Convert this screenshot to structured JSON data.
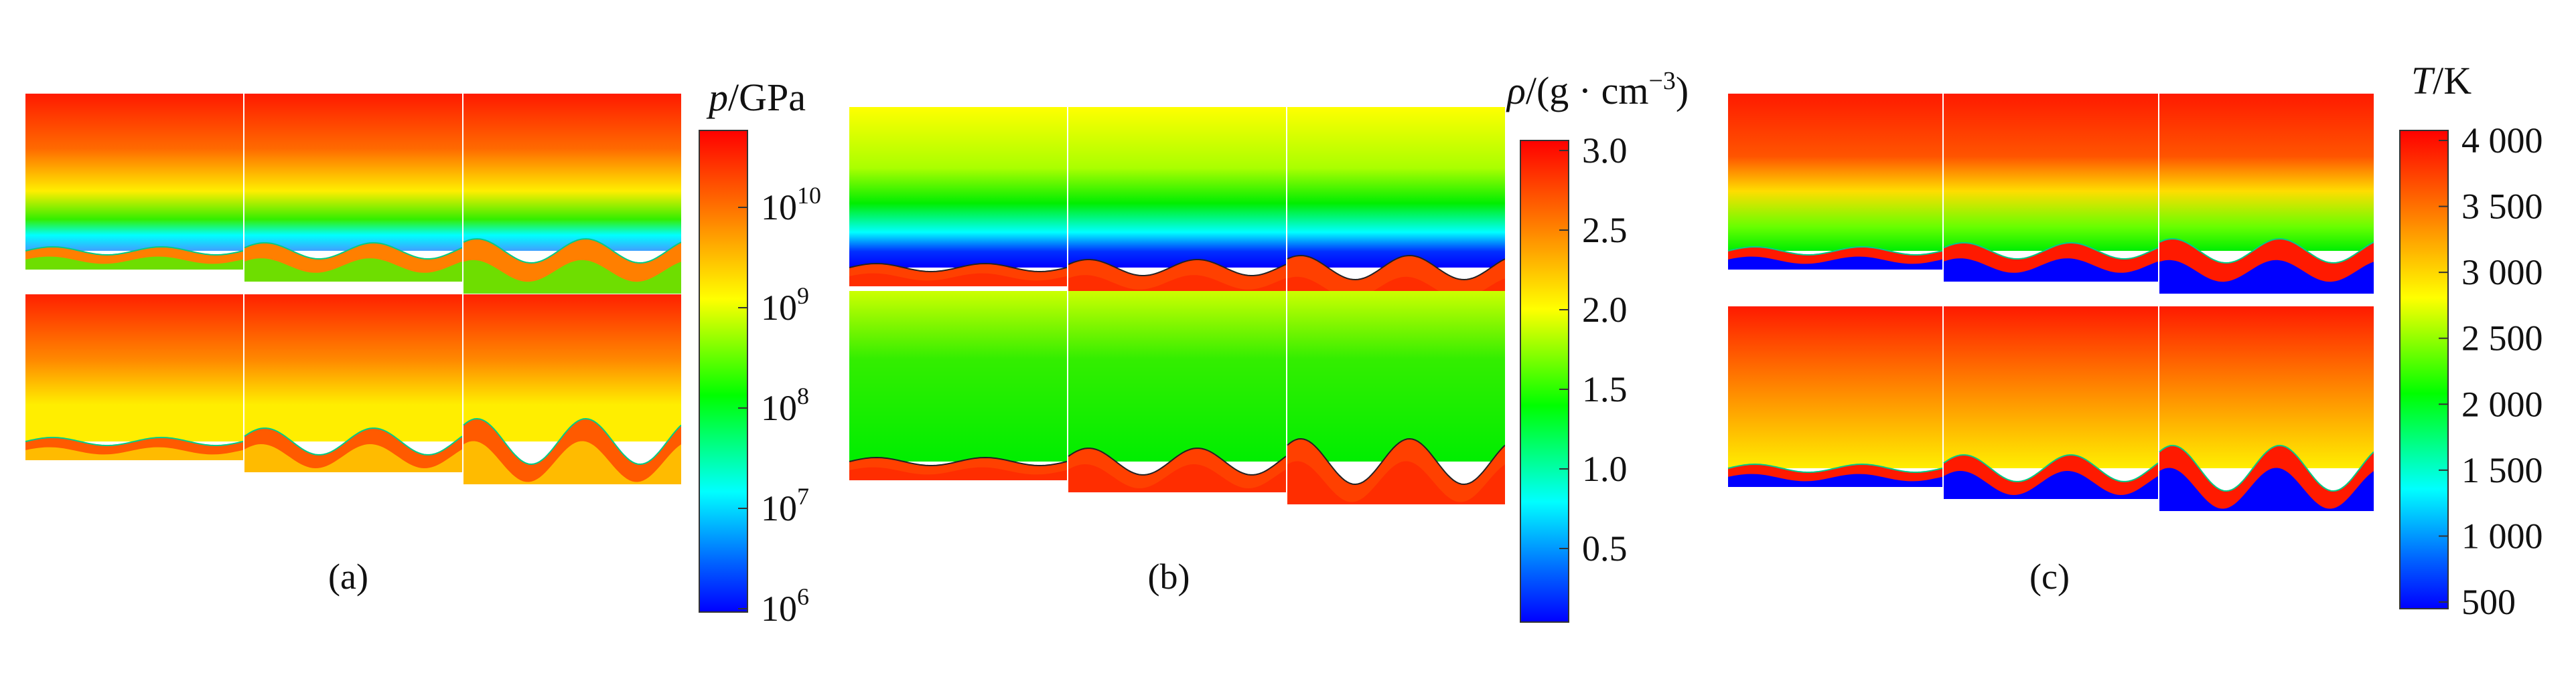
{
  "figure": {
    "panels": [
      {
        "id": "a",
        "caption": "(a)",
        "quantity": "pressure",
        "colorbar": {
          "title_symbol": "p",
          "title_unit": "/GPa",
          "scale": "log",
          "ticks": [
            {
              "base": "10",
              "exp": "10"
            },
            {
              "base": "10",
              "exp": "9"
            },
            {
              "base": "10",
              "exp": "8"
            },
            {
              "base": "10",
              "exp": "7"
            },
            {
              "base": "10",
              "exp": "6"
            }
          ]
        }
      },
      {
        "id": "b",
        "caption": "(b)",
        "quantity": "density",
        "colorbar": {
          "title_symbol": "ρ",
          "title_unit": "/(g · cm",
          "title_exp": "−3",
          "title_close": ")",
          "scale": "linear",
          "ticks": [
            "3.0",
            "2.5",
            "2.0",
            "1.5",
            "1.0",
            "0.5"
          ]
        }
      },
      {
        "id": "c",
        "caption": "(c)",
        "quantity": "temperature",
        "colorbar": {
          "title_symbol": "T",
          "title_unit": "/K",
          "scale": "linear",
          "ticks": [
            "4 000",
            "3 500",
            "3 000",
            "2 500",
            "2 000",
            "1 500",
            "1 000",
            "500"
          ]
        }
      }
    ],
    "colors": {
      "red": "#ff1a00",
      "orange": "#ff7f00",
      "yellow": "#ffff00",
      "green": "#00ee00",
      "cyan": "#00ffff",
      "blue": "#0000ff"
    }
  }
}
